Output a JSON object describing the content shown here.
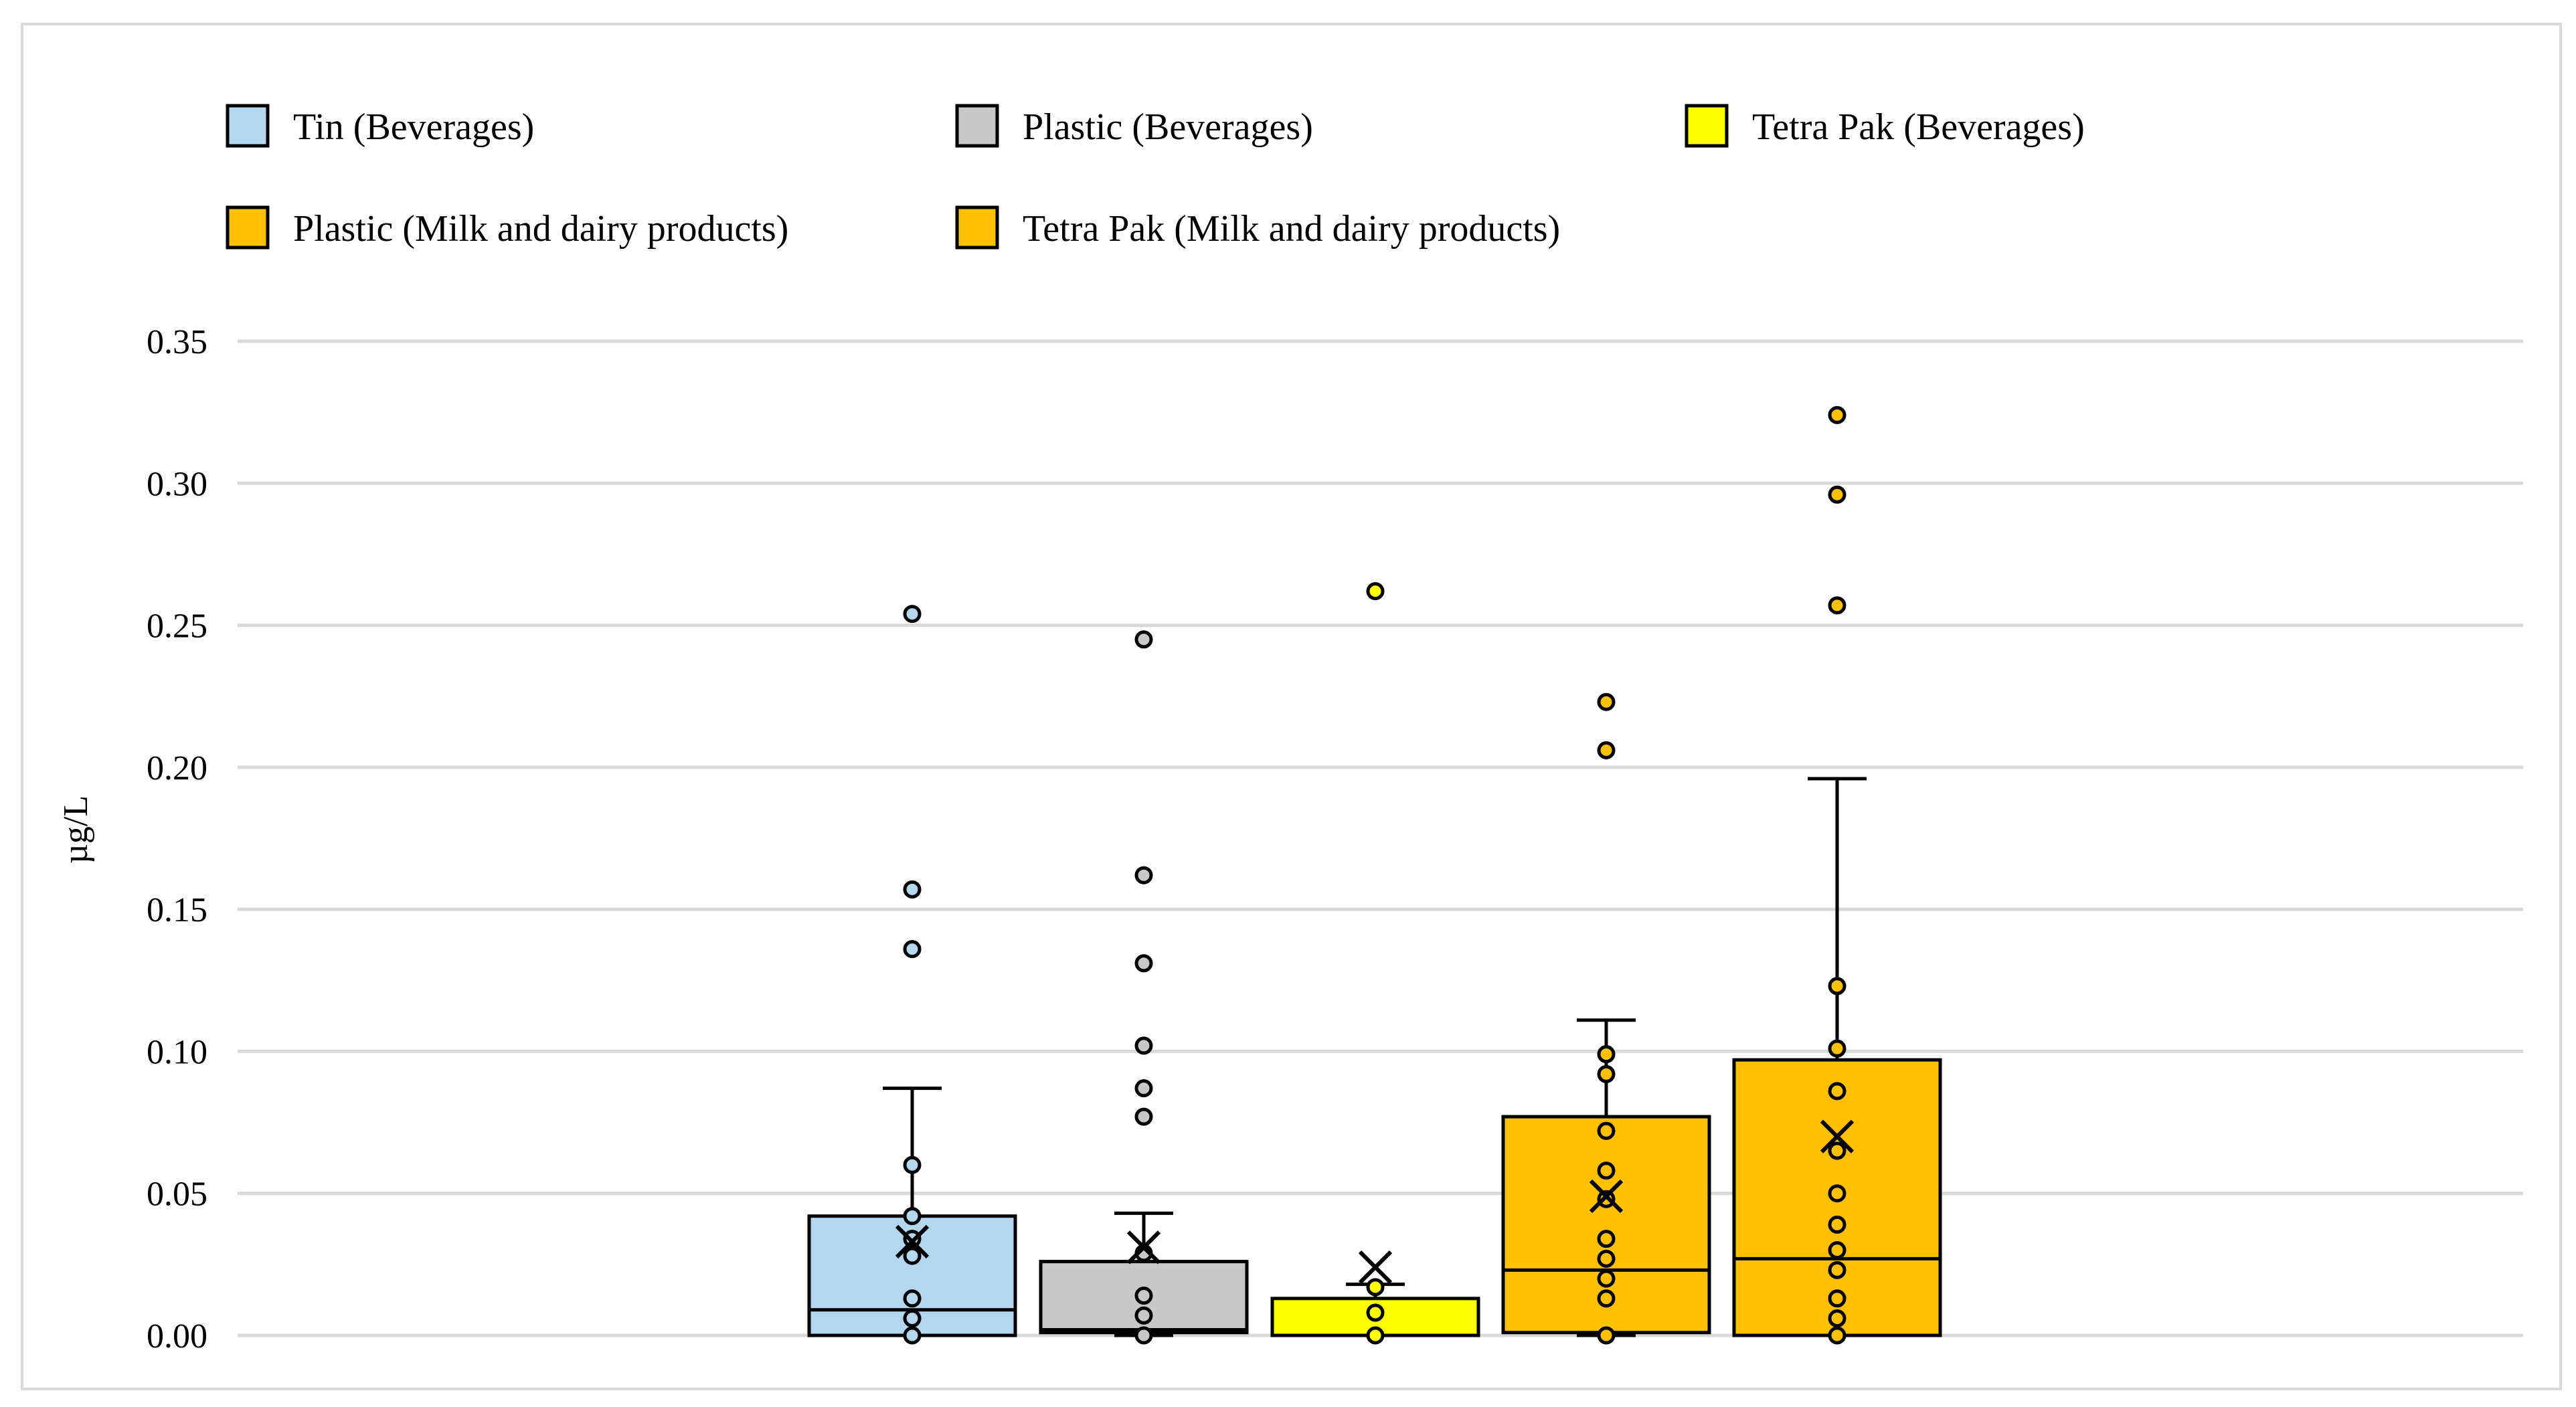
{
  "chart_data": {
    "type": "boxplot",
    "title": "",
    "xlabel": "",
    "ylabel": "µg/L",
    "ylim": [
      0,
      0.35
    ],
    "yticks": [
      "0.00",
      "0.05",
      "0.10",
      "0.15",
      "0.20",
      "0.25",
      "0.30",
      "0.35"
    ],
    "y_tick_values": [
      0,
      0.05,
      0.1,
      0.15,
      0.2,
      0.25,
      0.3,
      0.35
    ],
    "grid": true,
    "legend_position": "top",
    "series": [
      {
        "name": "Tin (Beverages)",
        "color": "#b4d7f0",
        "q1": 0.0,
        "median": 0.009,
        "q3": 0.042,
        "whisker_low": 0.0,
        "whisker_high": 0.087,
        "mean": 0.033,
        "points": [
          0.0,
          0.006,
          0.013,
          0.028,
          0.034,
          0.042,
          0.06,
          0.136,
          0.157,
          0.254
        ]
      },
      {
        "name": "Plastic (Beverages)",
        "color": "#c8c8c8",
        "q1": 0.001,
        "median": 0.002,
        "q3": 0.026,
        "whisker_low": 0.0,
        "whisker_high": 0.043,
        "mean": 0.031,
        "points": [
          0.0,
          0.007,
          0.014,
          0.029,
          0.077,
          0.087,
          0.102,
          0.131,
          0.162,
          0.245
        ]
      },
      {
        "name": "Tetra Pak (Beverages)",
        "color": "#ffff00",
        "q1": 0.0,
        "median": 0.0,
        "q3": 0.013,
        "whisker_low": 0.0,
        "whisker_high": 0.018,
        "mean": 0.024,
        "points": [
          0.0,
          0.008,
          0.017,
          0.262
        ]
      },
      {
        "name": "Plastic (Milk and dairy products)",
        "color": "#ffc000",
        "q1": 0.001,
        "median": 0.023,
        "q3": 0.077,
        "whisker_low": 0.0,
        "whisker_high": 0.111,
        "mean": 0.049,
        "points": [
          0.0,
          0.013,
          0.02,
          0.027,
          0.034,
          0.048,
          0.058,
          0.072,
          0.092,
          0.099,
          0.206,
          0.223
        ]
      },
      {
        "name": "Tetra Pak (Milk and dairy products)",
        "color": "#ffc000",
        "q1": 0.0,
        "median": 0.027,
        "q3": 0.097,
        "whisker_low": 0.0,
        "whisker_high": 0.196,
        "mean": 0.07,
        "points": [
          0.0,
          0.006,
          0.013,
          0.023,
          0.03,
          0.039,
          0.05,
          0.065,
          0.086,
          0.101,
          0.123,
          0.257,
          0.296,
          0.324
        ]
      }
    ]
  }
}
